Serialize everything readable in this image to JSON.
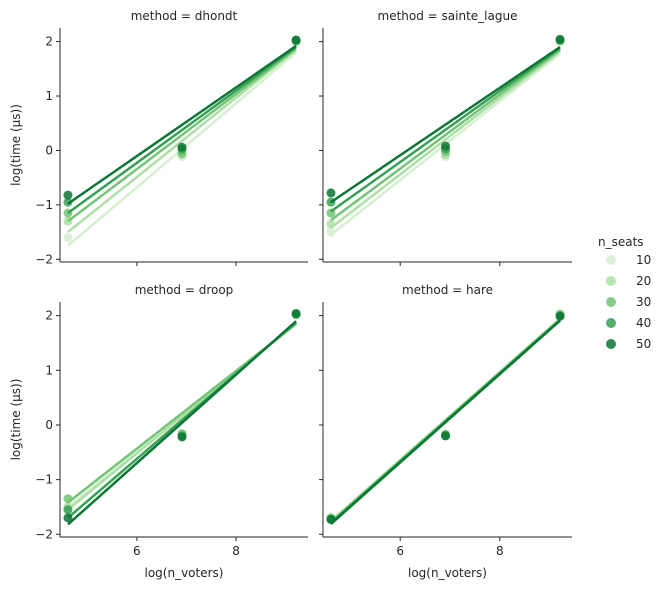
{
  "chart_data": {
    "type": "scatter",
    "layout": "facet-grid 2x2 with regression lines",
    "x_label": "log(n_voters)",
    "y_label": "log(time (μs))",
    "x_ticks": [
      6,
      8
    ],
    "y_ticks": [
      -2,
      -1,
      0,
      1,
      2
    ],
    "x_range": [
      4.45,
      9.45
    ],
    "y_range": [
      -2.05,
      2.25
    ],
    "legend": {
      "title": "n_seats",
      "placement": "right",
      "entries": [
        "10",
        "20",
        "30",
        "40",
        "50"
      ]
    },
    "series_colors": [
      "#d6efd0",
      "#acdea6",
      "#73c476",
      "#37a055",
      "#0b7734"
    ],
    "facets": [
      {
        "title": "method = dhondt",
        "series": [
          {
            "n_seats": "10",
            "points": [
              [
                4.61,
                -1.6
              ],
              [
                6.91,
                -0.12
              ],
              [
                9.21,
                2.0
              ]
            ],
            "fit": [
              [
                4.61,
                -1.75
              ],
              [
                9.21,
                1.8
              ]
            ]
          },
          {
            "n_seats": "20",
            "points": [
              [
                4.61,
                -1.3
              ],
              [
                6.91,
                -0.08
              ],
              [
                9.21,
                2.0
              ]
            ],
            "fit": [
              [
                4.61,
                -1.5
              ],
              [
                9.21,
                1.85
              ]
            ]
          },
          {
            "n_seats": "30",
            "points": [
              [
                4.61,
                -1.15
              ],
              [
                6.91,
                -0.05
              ],
              [
                9.21,
                2.01
              ]
            ],
            "fit": [
              [
                4.61,
                -1.3
              ],
              [
                9.21,
                1.87
              ]
            ]
          },
          {
            "n_seats": "40",
            "points": [
              [
                4.61,
                -0.95
              ],
              [
                6.91,
                0.02
              ],
              [
                9.21,
                2.02
              ]
            ],
            "fit": [
              [
                4.61,
                -1.15
              ],
              [
                9.21,
                1.9
              ]
            ]
          },
          {
            "n_seats": "50",
            "points": [
              [
                4.61,
                -0.82
              ],
              [
                6.91,
                0.06
              ],
              [
                9.21,
                2.03
              ]
            ],
            "fit": [
              [
                4.61,
                -0.98
              ],
              [
                9.21,
                1.92
              ]
            ]
          }
        ]
      },
      {
        "title": "method = sainte_lague",
        "series": [
          {
            "n_seats": "10",
            "points": [
              [
                4.61,
                -1.5
              ],
              [
                6.91,
                -0.12
              ],
              [
                9.21,
                2.0
              ]
            ],
            "fit": [
              [
                4.61,
                -1.55
              ],
              [
                9.21,
                1.78
              ]
            ]
          },
          {
            "n_seats": "20",
            "points": [
              [
                4.61,
                -1.35
              ],
              [
                6.91,
                -0.08
              ],
              [
                9.21,
                2.01
              ]
            ],
            "fit": [
              [
                4.61,
                -1.42
              ],
              [
                9.21,
                1.82
              ]
            ]
          },
          {
            "n_seats": "30",
            "points": [
              [
                4.61,
                -1.15
              ],
              [
                6.91,
                -0.02
              ],
              [
                9.21,
                2.02
              ]
            ],
            "fit": [
              [
                4.61,
                -1.28
              ],
              [
                9.21,
                1.85
              ]
            ]
          },
          {
            "n_seats": "40",
            "points": [
              [
                4.61,
                -0.95
              ],
              [
                6.91,
                0.03
              ],
              [
                9.21,
                2.03
              ]
            ],
            "fit": [
              [
                4.61,
                -1.12
              ],
              [
                9.21,
                1.88
              ]
            ]
          },
          {
            "n_seats": "50",
            "points": [
              [
                4.61,
                -0.78
              ],
              [
                6.91,
                0.08
              ],
              [
                9.21,
                2.04
              ]
            ],
            "fit": [
              [
                4.61,
                -0.95
              ],
              [
                9.21,
                1.9
              ]
            ]
          }
        ]
      },
      {
        "title": "method = droop",
        "series": [
          {
            "n_seats": "10",
            "points": [
              [
                4.61,
                -1.55
              ],
              [
                6.91,
                -0.18
              ],
              [
                9.21,
                2.02
              ]
            ],
            "fit": [
              [
                4.61,
                -1.5
              ],
              [
                9.21,
                1.85
              ]
            ]
          },
          {
            "n_seats": "20",
            "points": [
              [
                4.61,
                -1.5
              ],
              [
                6.91,
                -0.17
              ],
              [
                9.21,
                2.02
              ]
            ],
            "fit": [
              [
                4.61,
                -1.55
              ],
              [
                9.21,
                1.86
              ]
            ]
          },
          {
            "n_seats": "30",
            "points": [
              [
                4.61,
                -1.35
              ],
              [
                6.91,
                -0.16
              ],
              [
                9.21,
                2.02
              ]
            ],
            "fit": [
              [
                4.61,
                -1.42
              ],
              [
                9.21,
                1.85
              ]
            ]
          },
          {
            "n_seats": "40",
            "points": [
              [
                4.61,
                -1.55
              ],
              [
                6.91,
                -0.2
              ],
              [
                9.21,
                2.03
              ]
            ],
            "fit": [
              [
                4.61,
                -1.7
              ],
              [
                9.21,
                1.88
              ]
            ]
          },
          {
            "n_seats": "50",
            "points": [
              [
                4.61,
                -1.7
              ],
              [
                6.91,
                -0.22
              ],
              [
                9.21,
                2.04
              ]
            ],
            "fit": [
              [
                4.61,
                -1.82
              ],
              [
                9.21,
                1.9
              ]
            ]
          }
        ]
      },
      {
        "title": "method = hare",
        "series": [
          {
            "n_seats": "10",
            "points": [
              [
                4.61,
                -1.68
              ],
              [
                6.91,
                -0.16
              ],
              [
                9.21,
                2.05
              ]
            ],
            "fit": [
              [
                4.61,
                -1.75
              ],
              [
                9.21,
                1.95
              ]
            ]
          },
          {
            "n_seats": "20",
            "points": [
              [
                4.61,
                -1.7
              ],
              [
                6.91,
                -0.17
              ],
              [
                9.21,
                2.03
              ]
            ],
            "fit": [
              [
                4.61,
                -1.77
              ],
              [
                9.21,
                1.94
              ]
            ]
          },
          {
            "n_seats": "30",
            "points": [
              [
                4.61,
                -1.71
              ],
              [
                6.91,
                -0.18
              ],
              [
                9.21,
                2.01
              ]
            ],
            "fit": [
              [
                4.61,
                -1.78
              ],
              [
                9.21,
                1.93
              ]
            ]
          },
          {
            "n_seats": "40",
            "points": [
              [
                4.61,
                -1.72
              ],
              [
                6.91,
                -0.19
              ],
              [
                9.21,
                2.0
              ]
            ],
            "fit": [
              [
                4.61,
                -1.79
              ],
              [
                9.21,
                1.92
              ]
            ]
          },
          {
            "n_seats": "50",
            "points": [
              [
                4.61,
                -1.73
              ],
              [
                6.91,
                -0.2
              ],
              [
                9.21,
                1.99
              ]
            ],
            "fit": [
              [
                4.61,
                -1.81
              ],
              [
                9.21,
                1.91
              ]
            ]
          }
        ]
      }
    ]
  }
}
